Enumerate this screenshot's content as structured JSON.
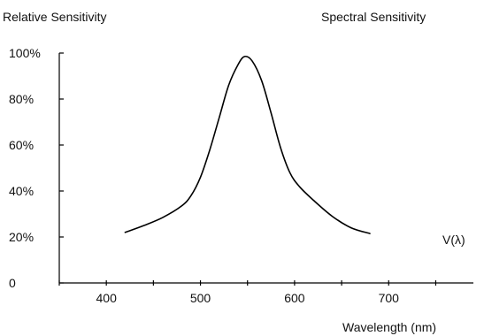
{
  "chart_data": {
    "type": "line",
    "title": "Spectral Sensitivity",
    "ylabel": "Relative Sensitivity",
    "xlabel": "Wavelength (nm)",
    "xlim": [
      350,
      790
    ],
    "ylim": [
      0,
      100
    ],
    "x_ticks": [
      400,
      500,
      600,
      700
    ],
    "y_ticks": [
      0,
      20,
      40,
      60,
      80,
      100
    ],
    "y_tick_labels": [
      "0",
      "20%",
      "40%",
      "60%",
      "80%",
      "100%"
    ],
    "grid": false,
    "series": [
      {
        "name": "V(λ)",
        "x": [
          420,
          440,
          460,
          480,
          490,
          500,
          510,
          520,
          530,
          540,
          547,
          555,
          565,
          575,
          585,
          595,
          605,
          620,
          640,
          660,
          680
        ],
        "y": [
          22,
          25,
          28.5,
          33.5,
          38,
          46,
          58,
          72,
          86,
          95,
          98.5,
          96.5,
          88,
          74,
          59,
          48,
          42,
          36,
          29,
          24,
          21.5
        ]
      }
    ],
    "colors": {
      "line": "#000000",
      "axis": "#000000",
      "text": "#111111"
    }
  }
}
